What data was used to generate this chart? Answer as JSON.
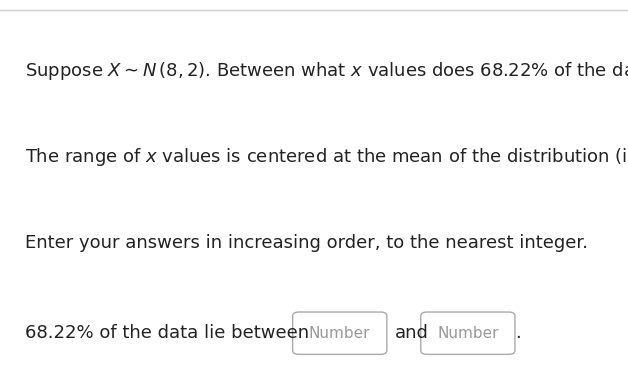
{
  "bg_color": "#ffffff",
  "top_border_color": "#cccccc",
  "line3": "Enter your answers in increasing order, to the nearest integer.",
  "line4_prefix": "68.22% of the data lie between",
  "box1_label": "Number",
  "and_text": "and",
  "box2_label": "Number",
  "period": ".",
  "text_color": "#222222",
  "box_border_color": "#aaaaaa",
  "box_fill_color": "#ffffff",
  "placeholder_color": "#999999",
  "font_size_main": 13,
  "font_size_placeholder": 11
}
